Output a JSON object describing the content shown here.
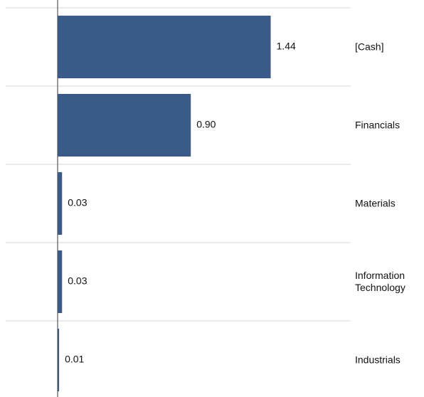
{
  "chart_data": {
    "type": "bar",
    "orientation": "horizontal",
    "categories": [
      "[Cash]",
      "Financials",
      "Materials",
      "Information Technology",
      "Industrials"
    ],
    "category_lines": [
      [
        "[Cash]"
      ],
      [
        "Financials"
      ],
      [
        "Materials"
      ],
      [
        "Information",
        "Technology"
      ],
      [
        "Industrials"
      ]
    ],
    "values": [
      1.44,
      0.9,
      0.03,
      0.03,
      0.01
    ],
    "value_labels": [
      "1.44",
      "0.90",
      "0.03",
      "0.03",
      "0.01"
    ],
    "xlim": [
      0,
      2.0
    ],
    "bar_color": "#3a5a8a",
    "grid": true,
    "legend": "none"
  }
}
